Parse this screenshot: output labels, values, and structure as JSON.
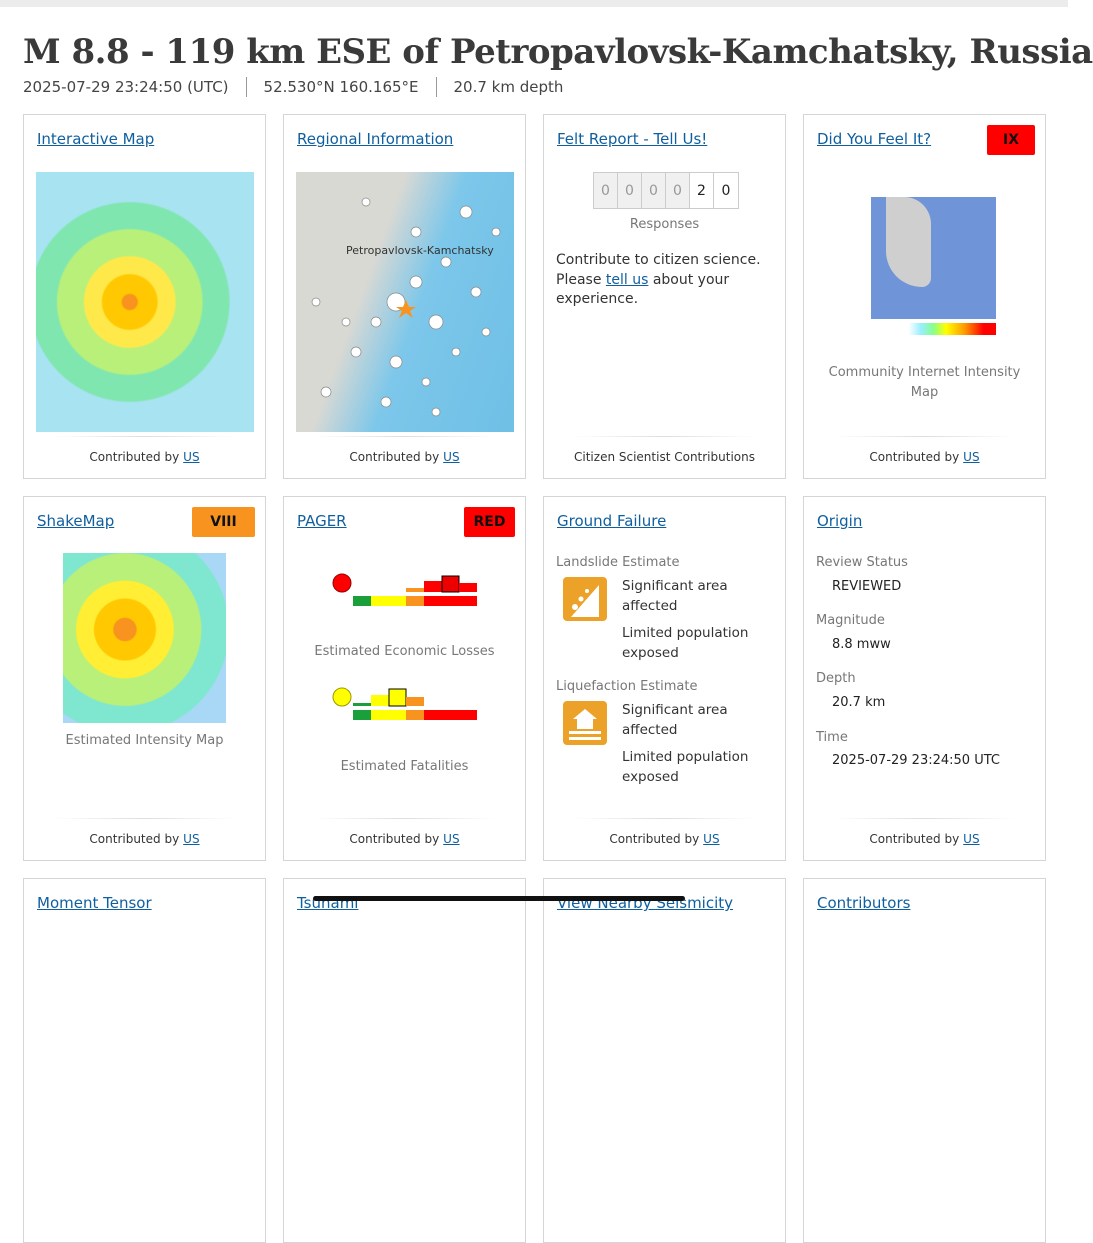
{
  "page": {
    "title": "M 8.8 - 119 km ESE of Petropavlovsk-Kamchatsky, Russia",
    "time": "2025-07-29 23:24:50 (UTC)",
    "location": "52.530°N 160.165°E",
    "depth": "20.7 km depth"
  },
  "contributed_by": "Contributed by",
  "contributor": "US",
  "cards": {
    "interactive_map": {
      "title": "Interactive Map"
    },
    "regional": {
      "title": "Regional Information",
      "map_label": "Petropavlovsk-Kamchatsky"
    },
    "felt": {
      "title": "Felt Report - Tell Us!",
      "digits": [
        "0",
        "0",
        "0",
        "0",
        "2",
        "0"
      ],
      "responses": "Responses",
      "text_before": "Contribute to citizen science. Please ",
      "link": "tell us",
      "text_after": " about your experience.",
      "footer": "Citizen Scientist Contributions"
    },
    "dyfi": {
      "title": "Did You Feel It?",
      "badge": "IX",
      "badge_color": "#ff0000",
      "caption": "Community Internet Intensity Map"
    },
    "shakemap": {
      "title": "ShakeMap",
      "badge": "VIII",
      "badge_color": "#f7931e",
      "caption": "Estimated Intensity Map"
    },
    "pager": {
      "title": "PAGER",
      "badge": "RED",
      "badge_color": "#ff0000",
      "losses_caption": "Estimated Economic Losses",
      "fatalities_caption": "Estimated Fatalities",
      "losses_alert_color": "#ff0000",
      "fatalities_alert_color": "#ffff00"
    },
    "ground_failure": {
      "title": "Ground Failure",
      "landslide_label": "Landslide Estimate",
      "landslide_area": "Significant area affected",
      "landslide_pop": "Limited population exposed",
      "liquefaction_label": "Liquefaction Estimate",
      "liquefaction_area": "Significant area affected",
      "liquefaction_pop": "Limited population exposed"
    },
    "origin": {
      "title": "Origin",
      "review_label": "Review Status",
      "review": "REVIEWED",
      "magnitude_label": "Magnitude",
      "magnitude": "8.8 mww",
      "depth_label": "Depth",
      "depth": "20.7 km",
      "time_label": "Time",
      "time": "2025-07-29 23:24:50 UTC"
    },
    "moment_tensor": {
      "title": "Moment Tensor"
    },
    "tsunami": {
      "title": "Tsunami"
    },
    "nearby": {
      "title": "View Nearby Seismicity"
    },
    "contributors": {
      "title": "Contributors"
    }
  }
}
